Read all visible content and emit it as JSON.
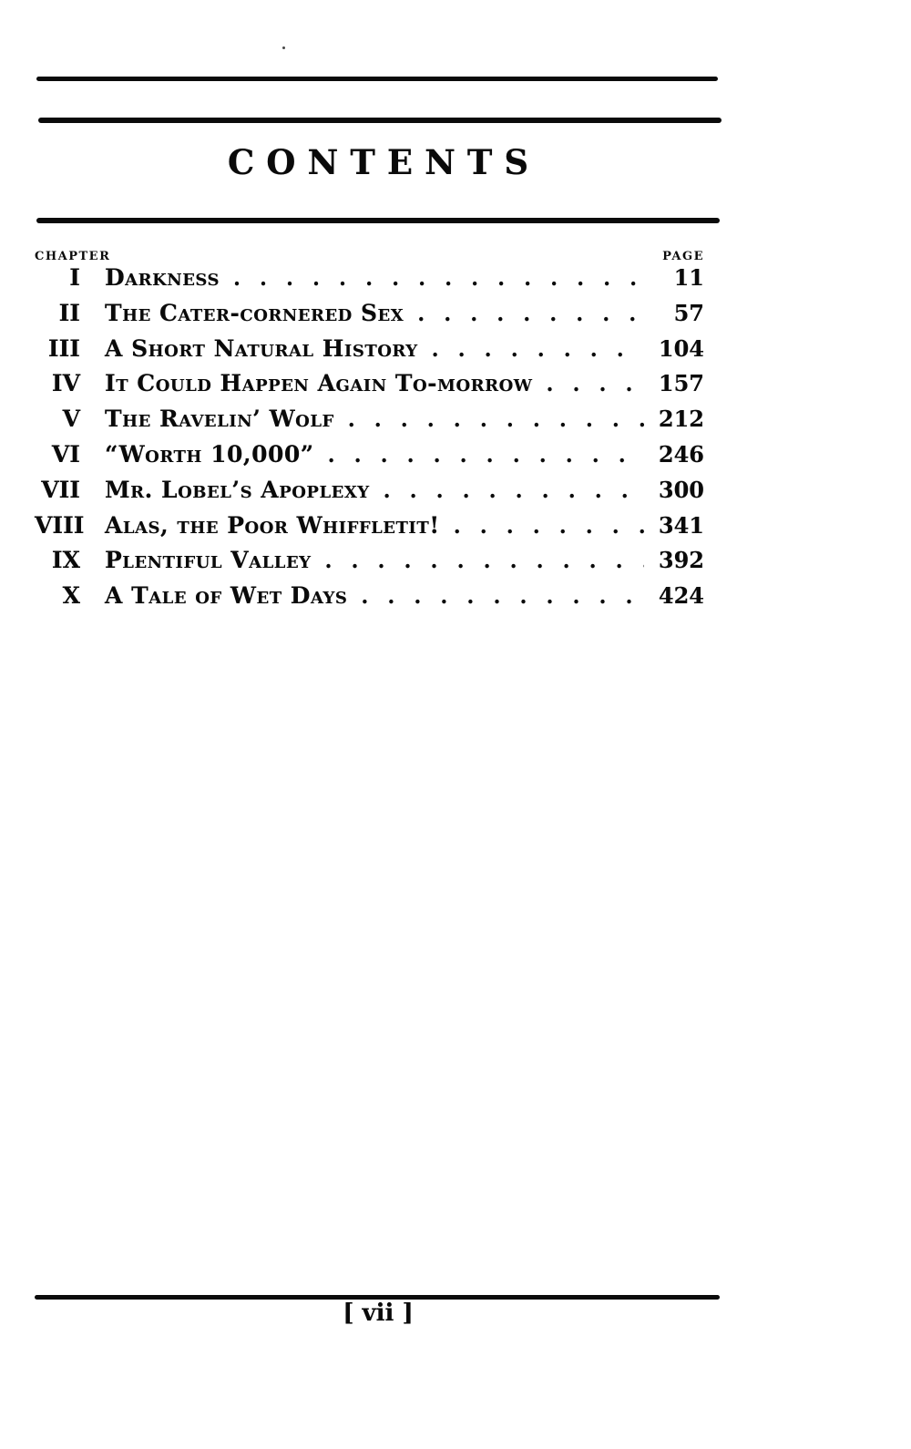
{
  "page": {
    "title": "CONTENTS",
    "footer_label": "[ vii ]"
  },
  "toc": {
    "chapter_header": "CHAPTER",
    "page_header": "PAGE",
    "entries": [
      {
        "numeral": "I",
        "title": "Darkness",
        "page": "11"
      },
      {
        "numeral": "II",
        "title": "The Cater-cornered Sex",
        "page": "57"
      },
      {
        "numeral": "III",
        "title": "A Short Natural History",
        "page": "104"
      },
      {
        "numeral": "IV",
        "title": "It Could Happen Again To-morrow",
        "page": "157"
      },
      {
        "numeral": "V",
        "title": "The Ravelin’ Wolf",
        "page": "212"
      },
      {
        "numeral": "VI",
        "title": "“Worth 10,000”",
        "page": "246"
      },
      {
        "numeral": "VII",
        "title": "Mr. Lobel’s Apoplexy",
        "page": "300"
      },
      {
        "numeral": "VIII",
        "title": "Alas, the Poor Whiffletit!",
        "page": "341"
      },
      {
        "numeral": "IX",
        "title": "Plentiful Valley",
        "page": "392"
      },
      {
        "numeral": "X",
        "title": "A Tale of Wet Days",
        "page": "424"
      }
    ]
  }
}
